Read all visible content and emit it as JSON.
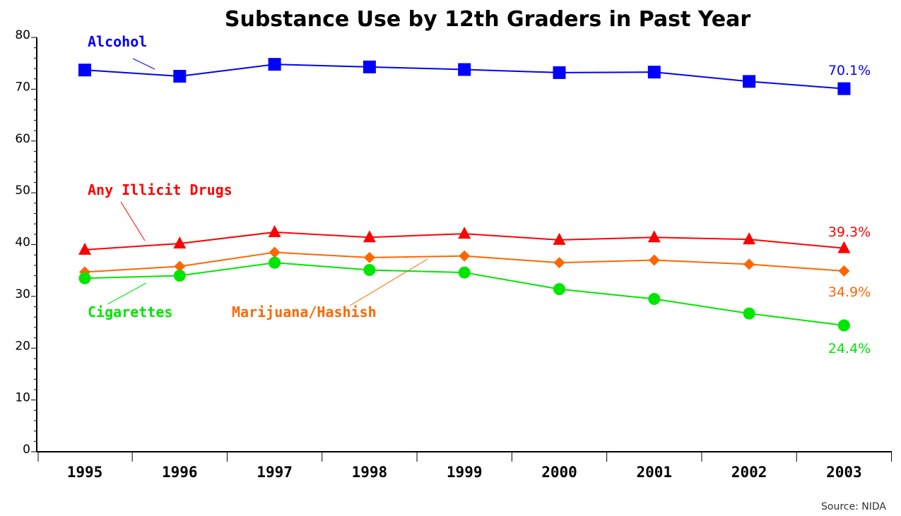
{
  "chart_data": {
    "type": "line",
    "title": "Substance Use by 12th Graders in Past Year",
    "source": "Source: NIDA",
    "categories": [
      "1995",
      "1996",
      "1997",
      "1998",
      "1999",
      "2000",
      "2001",
      "2002",
      "2003"
    ],
    "ylim": [
      0,
      80
    ],
    "yticks": [
      0,
      10,
      20,
      30,
      40,
      50,
      60,
      70,
      80
    ],
    "xlabel": "",
    "ylabel": "",
    "grid": false,
    "series": [
      {
        "name": "Alcohol",
        "color": "#0000ff",
        "marker": "square",
        "values": [
          73.7,
          72.5,
          74.8,
          74.3,
          73.8,
          73.2,
          73.3,
          71.5,
          70.1
        ],
        "end_label": "70.1%"
      },
      {
        "name": "Any Illicit Drugs",
        "color": "#ff0000",
        "marker": "triangle",
        "values": [
          39.0,
          40.2,
          42.4,
          41.4,
          42.1,
          40.9,
          41.4,
          41.0,
          39.3
        ],
        "end_label": "39.3%"
      },
      {
        "name": "Marijuana/Hashish",
        "color": "#ff6600",
        "marker": "diamond",
        "values": [
          34.7,
          35.8,
          38.5,
          37.5,
          37.8,
          36.5,
          37.0,
          36.2,
          34.9
        ],
        "end_label": "34.9%"
      },
      {
        "name": "Cigarettes",
        "color": "#00e600",
        "marker": "circle",
        "values": [
          33.5,
          34.0,
          36.5,
          35.1,
          34.6,
          31.4,
          29.5,
          26.7,
          24.4
        ],
        "end_label": "24.4%"
      }
    ]
  }
}
